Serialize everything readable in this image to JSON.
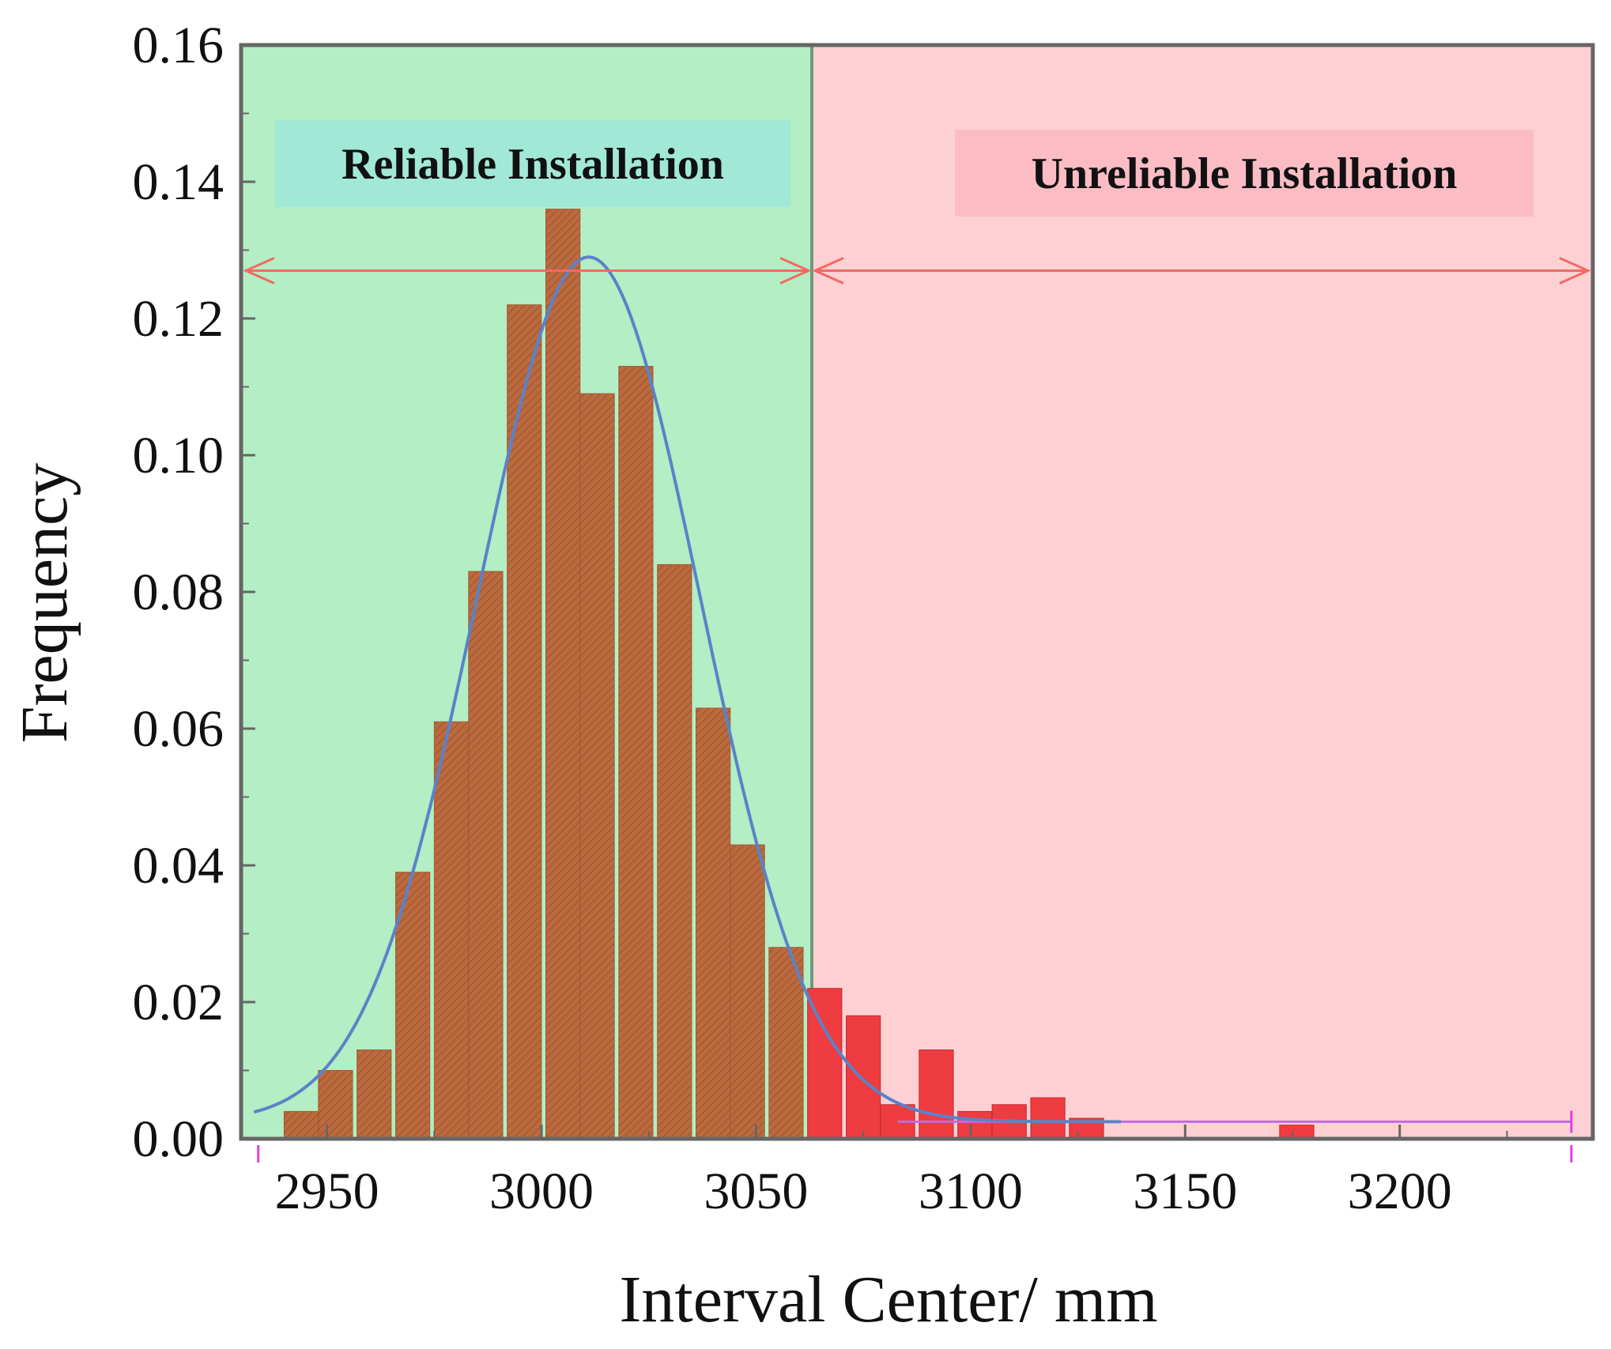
{
  "chart_data": {
    "type": "bar",
    "xlabel": "Interval Center/ mm",
    "ylabel": "Frequency",
    "xlim": [
      2930,
      3245
    ],
    "ylim": [
      0,
      0.16
    ],
    "xticks": [
      2950,
      3000,
      3050,
      3100,
      3150,
      3200
    ],
    "xtick_labels": [
      "2950",
      "3000",
      "3050",
      "3100",
      "3150",
      "3200"
    ],
    "yticks": [
      0,
      0.02,
      0.04,
      0.06,
      0.08,
      0.1,
      0.12,
      0.14,
      0.16
    ],
    "ytick_labels": [
      "0.00",
      "0.02",
      "0.04",
      "0.06",
      "0.08",
      "0.10",
      "0.12",
      "0.14",
      "0.16"
    ],
    "bin_width": 8.7,
    "threshold": 3063,
    "bins": {
      "reliable": [
        {
          "x": 2944,
          "value": 0.004
        },
        {
          "x": 2952,
          "value": 0.01
        },
        {
          "x": 2961,
          "value": 0.013
        },
        {
          "x": 2970,
          "value": 0.039
        },
        {
          "x": 2979,
          "value": 0.061
        },
        {
          "x": 2987,
          "value": 0.083
        },
        {
          "x": 2996,
          "value": 0.122
        },
        {
          "x": 3005,
          "value": 0.136
        },
        {
          "x": 3013,
          "value": 0.109
        },
        {
          "x": 3022,
          "value": 0.113
        },
        {
          "x": 3031,
          "value": 0.084
        },
        {
          "x": 3040,
          "value": 0.063
        },
        {
          "x": 3048,
          "value": 0.043
        },
        {
          "x": 3057,
          "value": 0.028
        }
      ],
      "unreliable": [
        {
          "x": 3066,
          "value": 0.022
        },
        {
          "x": 3075,
          "value": 0.018
        },
        {
          "x": 3083,
          "value": 0.005
        },
        {
          "x": 3092,
          "value": 0.013
        },
        {
          "x": 3101,
          "value": 0.004
        },
        {
          "x": 3109,
          "value": 0.005
        },
        {
          "x": 3118,
          "value": 0.006
        },
        {
          "x": 3127,
          "value": 0.003
        },
        {
          "x": 3176,
          "value": 0.002
        }
      ]
    },
    "fit_curve": {
      "type": "normal",
      "mean": 3011,
      "sd": 26,
      "peak": 0.129,
      "baseline": 0.0025
    },
    "regions": [
      {
        "name": "reliable",
        "label": "Reliable Installation",
        "x_range": [
          2930,
          3063
        ],
        "color": "#b3eec4"
      },
      {
        "name": "unreliable",
        "label": "Unreliable Installation",
        "x_range": [
          3063,
          3245
        ],
        "color": "#fdd1d4"
      }
    ],
    "arrow_y": 0.127,
    "baseline_marker_y": 0.0025,
    "colors": {
      "reliable_bar": "#bb6a3e",
      "unreliable_bar": "#ee3c40",
      "fit_curve": "#5b82c8",
      "arrow": "#f36a63",
      "baseline_marker": "#c06ae8",
      "reliable_label_bg": "#a2e8d6",
      "unreliable_label_bg": "#fbbcc4",
      "axis": "#666666"
    }
  }
}
